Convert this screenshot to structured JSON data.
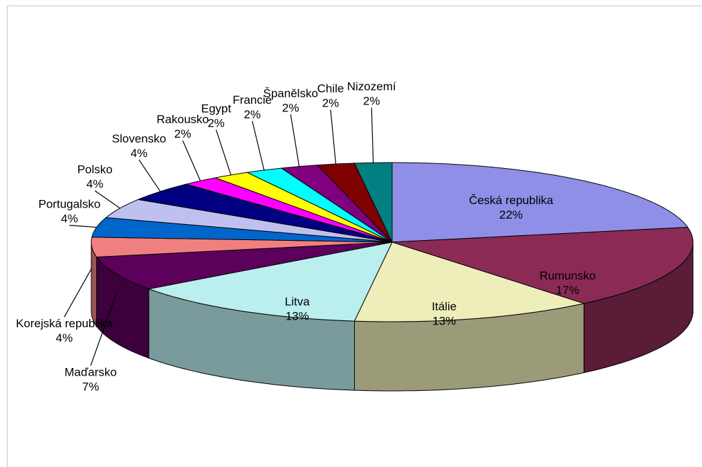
{
  "chart_data": {
    "type": "pie",
    "categories": [
      "Česká republika",
      "Rumunsko",
      "Itálie",
      "Litva",
      "Maďarsko",
      "Korejská republika",
      "Portugalsko",
      "Polsko",
      "Slovensko",
      "Rakousko",
      "Egypt",
      "Francie",
      "Španělsko",
      "Chile",
      "Nizozemí"
    ],
    "values": [
      22,
      17,
      13,
      13,
      7,
      4,
      4,
      4,
      4,
      2,
      2,
      2,
      2,
      2,
      2
    ],
    "value_labels": [
      "22%",
      "17%",
      "13%",
      "13%",
      "7%",
      "4%",
      "4%",
      "4%",
      "4%",
      "2%",
      "2%",
      "2%",
      "2%",
      "2%",
      "2%"
    ],
    "colors": [
      "#8f8fe8",
      "#8b2b55",
      "#eeeebb",
      "#bbeeee",
      "#5c005c",
      "#f08080",
      "#0066cc",
      "#c0c0f0",
      "#000080",
      "#ff00ff",
      "#ffff00",
      "#00ffff",
      "#800080",
      "#800000",
      "#008080"
    ]
  }
}
